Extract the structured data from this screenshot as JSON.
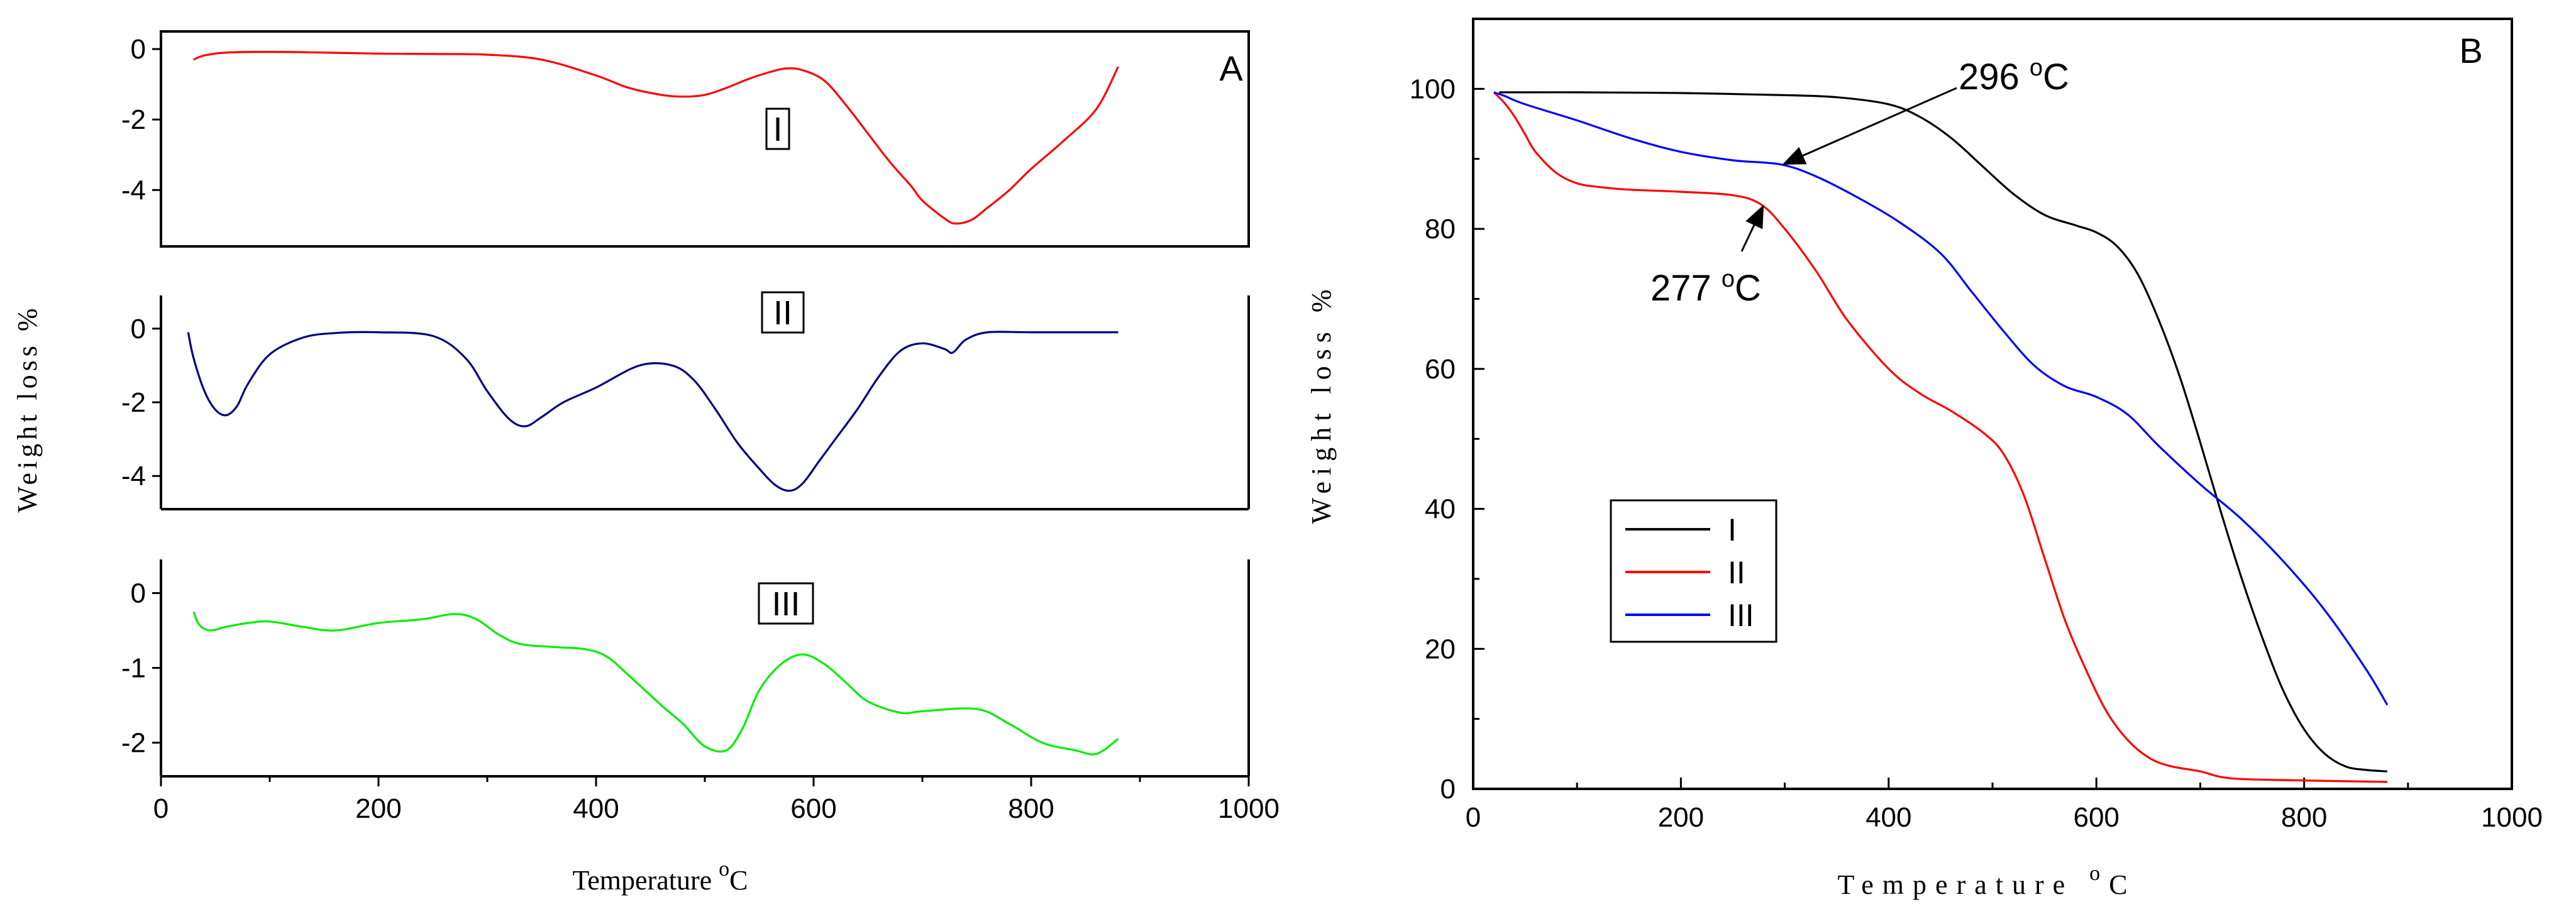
{
  "chart_data": [
    {
      "type": "line",
      "panel_label": "A",
      "xlabel": "Temperature ",
      "xlabel_unit": "C",
      "xlabel_degree": "o",
      "ylabel": "Weight loss %",
      "xlim": [
        0,
        1000
      ],
      "x_ticks": [
        "0",
        "200",
        "400",
        "600",
        "800",
        "1000"
      ],
      "subplots": [
        {
          "name": "I",
          "color": "#ff0000",
          "ylim": [
            -5.6,
            0.5
          ],
          "y_ticks": [
            {
              "v": 0,
              "label": "0"
            },
            {
              "v": -2,
              "label": "-2"
            },
            {
              "v": -4,
              "label": "-4"
            }
          ],
          "x": [
            30,
            40,
            60,
            100,
            150,
            200,
            250,
            300,
            350,
            400,
            430,
            460,
            480,
            500,
            520,
            540,
            560,
            575,
            590,
            610,
            630,
            650,
            670,
            690,
            700,
            720,
            730,
            745,
            760,
            780,
            800,
            830,
            860,
            880
          ],
          "y": [
            -0.3,
            -0.18,
            -0.1,
            -0.08,
            -0.1,
            -0.13,
            -0.14,
            -0.16,
            -0.3,
            -0.75,
            -1.1,
            -1.3,
            -1.35,
            -1.3,
            -1.1,
            -0.85,
            -0.65,
            -0.55,
            -0.6,
            -0.9,
            -1.6,
            -2.4,
            -3.2,
            -3.9,
            -4.3,
            -4.8,
            -4.95,
            -4.85,
            -4.5,
            -4.0,
            -3.4,
            -2.6,
            -1.7,
            -0.5
          ]
        },
        {
          "name": "II",
          "color": "#000080",
          "ylim": [
            -4.9,
            0.9
          ],
          "y_ticks": [
            {
              "v": 0,
              "label": "0"
            },
            {
              "v": -2,
              "label": "-2"
            },
            {
              "v": -4,
              "label": "-4"
            }
          ],
          "x": [
            25,
            30,
            40,
            50,
            60,
            70,
            80,
            100,
            130,
            160,
            200,
            250,
            280,
            300,
            320,
            335,
            350,
            370,
            400,
            440,
            470,
            490,
            510,
            530,
            550,
            565,
            578,
            590,
            605,
            620,
            640,
            660,
            680,
            700,
            720,
            728,
            740,
            760,
            800,
            880
          ],
          "y": [
            -0.1,
            -0.8,
            -1.7,
            -2.2,
            -2.35,
            -2.1,
            -1.5,
            -0.7,
            -0.25,
            -0.12,
            -0.1,
            -0.2,
            -0.8,
            -1.7,
            -2.45,
            -2.65,
            -2.4,
            -2.0,
            -1.6,
            -1.0,
            -1.0,
            -1.4,
            -2.2,
            -3.1,
            -3.8,
            -4.25,
            -4.4,
            -4.2,
            -3.6,
            -3.0,
            -2.2,
            -1.3,
            -0.6,
            -0.4,
            -0.55,
            -0.65,
            -0.3,
            -0.1,
            -0.1,
            -0.1
          ]
        },
        {
          "name": "III",
          "color": "#00ee00",
          "ylim": [
            -2.45,
            0.45
          ],
          "y_ticks": [
            {
              "v": 0,
              "label": "0"
            },
            {
              "v": -1,
              "label": "-1"
            },
            {
              "v": -2,
              "label": "-2"
            }
          ],
          "x": [
            30,
            35,
            45,
            60,
            80,
            100,
            130,
            160,
            200,
            240,
            270,
            290,
            310,
            330,
            360,
            390,
            410,
            430,
            460,
            480,
            500,
            520,
            535,
            550,
            570,
            590,
            610,
            630,
            650,
            680,
            700,
            750,
            780,
            810,
            840,
            860,
            880
          ],
          "y": [
            -0.25,
            -0.42,
            -0.5,
            -0.45,
            -0.4,
            -0.38,
            -0.45,
            -0.5,
            -0.4,
            -0.35,
            -0.28,
            -0.35,
            -0.55,
            -0.68,
            -0.72,
            -0.75,
            -0.85,
            -1.1,
            -1.5,
            -1.75,
            -2.05,
            -2.1,
            -1.8,
            -1.3,
            -0.95,
            -0.82,
            -0.95,
            -1.2,
            -1.45,
            -1.6,
            -1.58,
            -1.55,
            -1.75,
            -2.0,
            -2.1,
            -2.15,
            -1.95
          ]
        }
      ]
    },
    {
      "type": "line",
      "panel_label": "B",
      "xlabel": "Temperature ",
      "xlabel_unit": "C",
      "xlabel_degree": "o",
      "ylabel": "Weight loss %",
      "xlim": [
        0,
        1000
      ],
      "ylim": [
        0,
        110
      ],
      "x_ticks": [
        "0",
        "200",
        "400",
        "600",
        "800",
        "1000"
      ],
      "y_ticks": [
        {
          "v": 0,
          "label": "0"
        },
        {
          "v": 20,
          "label": "20"
        },
        {
          "v": 40,
          "label": "40"
        },
        {
          "v": 60,
          "label": "60"
        },
        {
          "v": 80,
          "label": "80"
        },
        {
          "v": 100,
          "label": "100"
        }
      ],
      "legend_position": "lower-left",
      "series": [
        {
          "name": "I",
          "color": "#000000",
          "x": [
            25,
            100,
            200,
            300,
            350,
            400,
            430,
            460,
            490,
            520,
            550,
            580,
            600,
            620,
            640,
            660,
            680,
            700,
            720,
            740,
            760,
            780,
            800,
            820,
            840,
            860,
            880
          ],
          "y": [
            99.5,
            99.5,
            99.4,
            99.1,
            98.8,
            97.8,
            96.0,
            93.0,
            89.0,
            85.0,
            82.0,
            80.5,
            79.5,
            77.5,
            73.5,
            67.0,
            59.0,
            49.5,
            39.5,
            30.0,
            21.5,
            14.0,
            8.5,
            5.0,
            3.2,
            2.7,
            2.5
          ]
        },
        {
          "name": "II",
          "color": "#ff0000",
          "x": [
            20,
            30,
            40,
            50,
            60,
            80,
            100,
            120,
            150,
            200,
            250,
            277,
            300,
            330,
            360,
            400,
            430,
            460,
            490,
            510,
            530,
            550,
            570,
            590,
            610,
            630,
            650,
            670,
            700,
            730,
            800,
            880
          ],
          "y": [
            99.5,
            98.0,
            96.0,
            93.5,
            91.0,
            88.0,
            86.5,
            86.0,
            85.6,
            85.3,
            84.8,
            83.5,
            80.0,
            74.0,
            67.0,
            60.0,
            56.5,
            54.0,
            51.0,
            48.0,
            42.0,
            33.0,
            24.0,
            17.0,
            11.0,
            7.0,
            4.5,
            3.3,
            2.5,
            1.5,
            1.2,
            1.0
          ]
        },
        {
          "name": "III",
          "color": "#0000ff",
          "x": [
            20,
            30,
            50,
            100,
            150,
            200,
            250,
            296,
            330,
            370,
            410,
            450,
            480,
            510,
            540,
            570,
            600,
            630,
            660,
            700,
            740,
            780,
            820,
            860,
            880
          ],
          "y": [
            99.5,
            99.0,
            97.8,
            95.5,
            93.0,
            91.0,
            89.8,
            89.2,
            87.5,
            84.5,
            81.0,
            76.5,
            71.0,
            65.5,
            60.5,
            57.5,
            56.0,
            53.5,
            49.0,
            43.5,
            38.5,
            32.5,
            25.5,
            17.0,
            12.0
          ]
        }
      ],
      "annotations": [
        {
          "text": "296 ",
          "unit": "C",
          "degree": "o",
          "x": 296,
          "y": 89.2
        },
        {
          "text": "277 ",
          "unit": "C",
          "degree": "o",
          "x": 277,
          "y": 83.5
        }
      ]
    }
  ]
}
